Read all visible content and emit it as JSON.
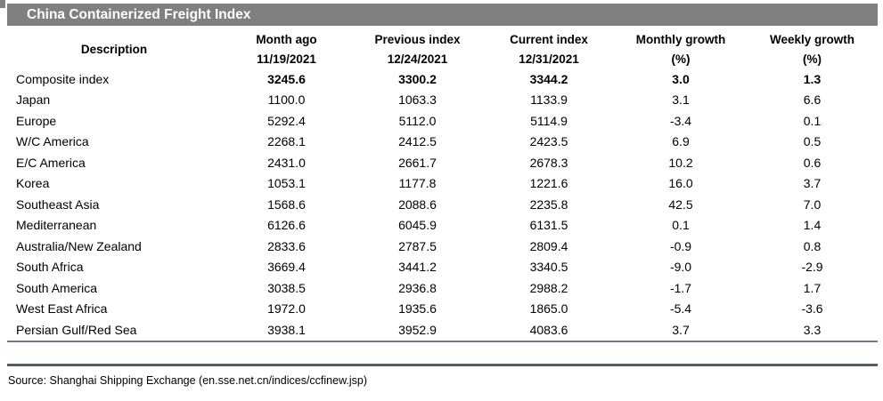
{
  "title": "China Containerized Freight Index",
  "source": "Source: Shanghai Shipping Exchange (en.sse.net.cn/indices/ccfinew.jsp)",
  "colors": {
    "title_bar": "#808080",
    "title_text": "#ffffff",
    "rule_thin": "#6e7b89",
    "rule_thick": "#4f5f6e"
  },
  "table": {
    "col_headers": [
      {
        "label": "Description",
        "sub": ""
      },
      {
        "label": "Month ago",
        "sub": "11/19/2021"
      },
      {
        "label": "Previous index",
        "sub": "12/24/2021"
      },
      {
        "label": "Current index",
        "sub": "12/31/2021"
      },
      {
        "label": "Monthly growth",
        "sub": "(%)"
      },
      {
        "label": "Weekly growth",
        "sub": "(%)"
      }
    ],
    "rows": [
      {
        "description": "Composite index",
        "values": [
          "3245.6",
          "3300.2",
          "3344.2",
          "3.0",
          "1.3"
        ],
        "bold_values": true
      },
      {
        "description": "Japan",
        "values": [
          "1100.0",
          "1063.3",
          "1133.9",
          "3.1",
          "6.6"
        ],
        "bold_values": false
      },
      {
        "description": "Europe",
        "values": [
          "5292.4",
          "5112.0",
          "5114.9",
          "-3.4",
          "0.1"
        ],
        "bold_values": false
      },
      {
        "description": "W/C America",
        "values": [
          "2268.1",
          "2412.5",
          "2423.5",
          "6.9",
          "0.5"
        ],
        "bold_values": false
      },
      {
        "description": "E/C America",
        "values": [
          "2431.0",
          "2661.7",
          "2678.3",
          "10.2",
          "0.6"
        ],
        "bold_values": false
      },
      {
        "description": "Korea",
        "values": [
          "1053.1",
          "1177.8",
          "1221.6",
          "16.0",
          "3.7"
        ],
        "bold_values": false
      },
      {
        "description": "Southeast Asia",
        "values": [
          "1568.6",
          "2088.6",
          "2235.8",
          "42.5",
          "7.0"
        ],
        "bold_values": false
      },
      {
        "description": "Mediterranean",
        "values": [
          "6126.6",
          "6045.9",
          "6131.5",
          "0.1",
          "1.4"
        ],
        "bold_values": false
      },
      {
        "description": "Australia/New Zealand",
        "values": [
          "2833.6",
          "2787.5",
          "2809.4",
          "-0.9",
          "0.8"
        ],
        "bold_values": false
      },
      {
        "description": "South Africa",
        "values": [
          "3669.4",
          "3441.2",
          "3340.5",
          "-9.0",
          "-2.9"
        ],
        "bold_values": false
      },
      {
        "description": "South America",
        "values": [
          "3038.5",
          "2936.8",
          "2988.2",
          "-1.7",
          "1.7"
        ],
        "bold_values": false
      },
      {
        "description": "West East Africa",
        "values": [
          "1972.0",
          "1935.6",
          "1865.0",
          "-5.4",
          "-3.6"
        ],
        "bold_values": false
      },
      {
        "description": "Persian Gulf/Red Sea",
        "values": [
          "3938.1",
          "3952.9",
          "4083.6",
          "3.7",
          "3.3"
        ],
        "bold_values": false
      }
    ]
  }
}
